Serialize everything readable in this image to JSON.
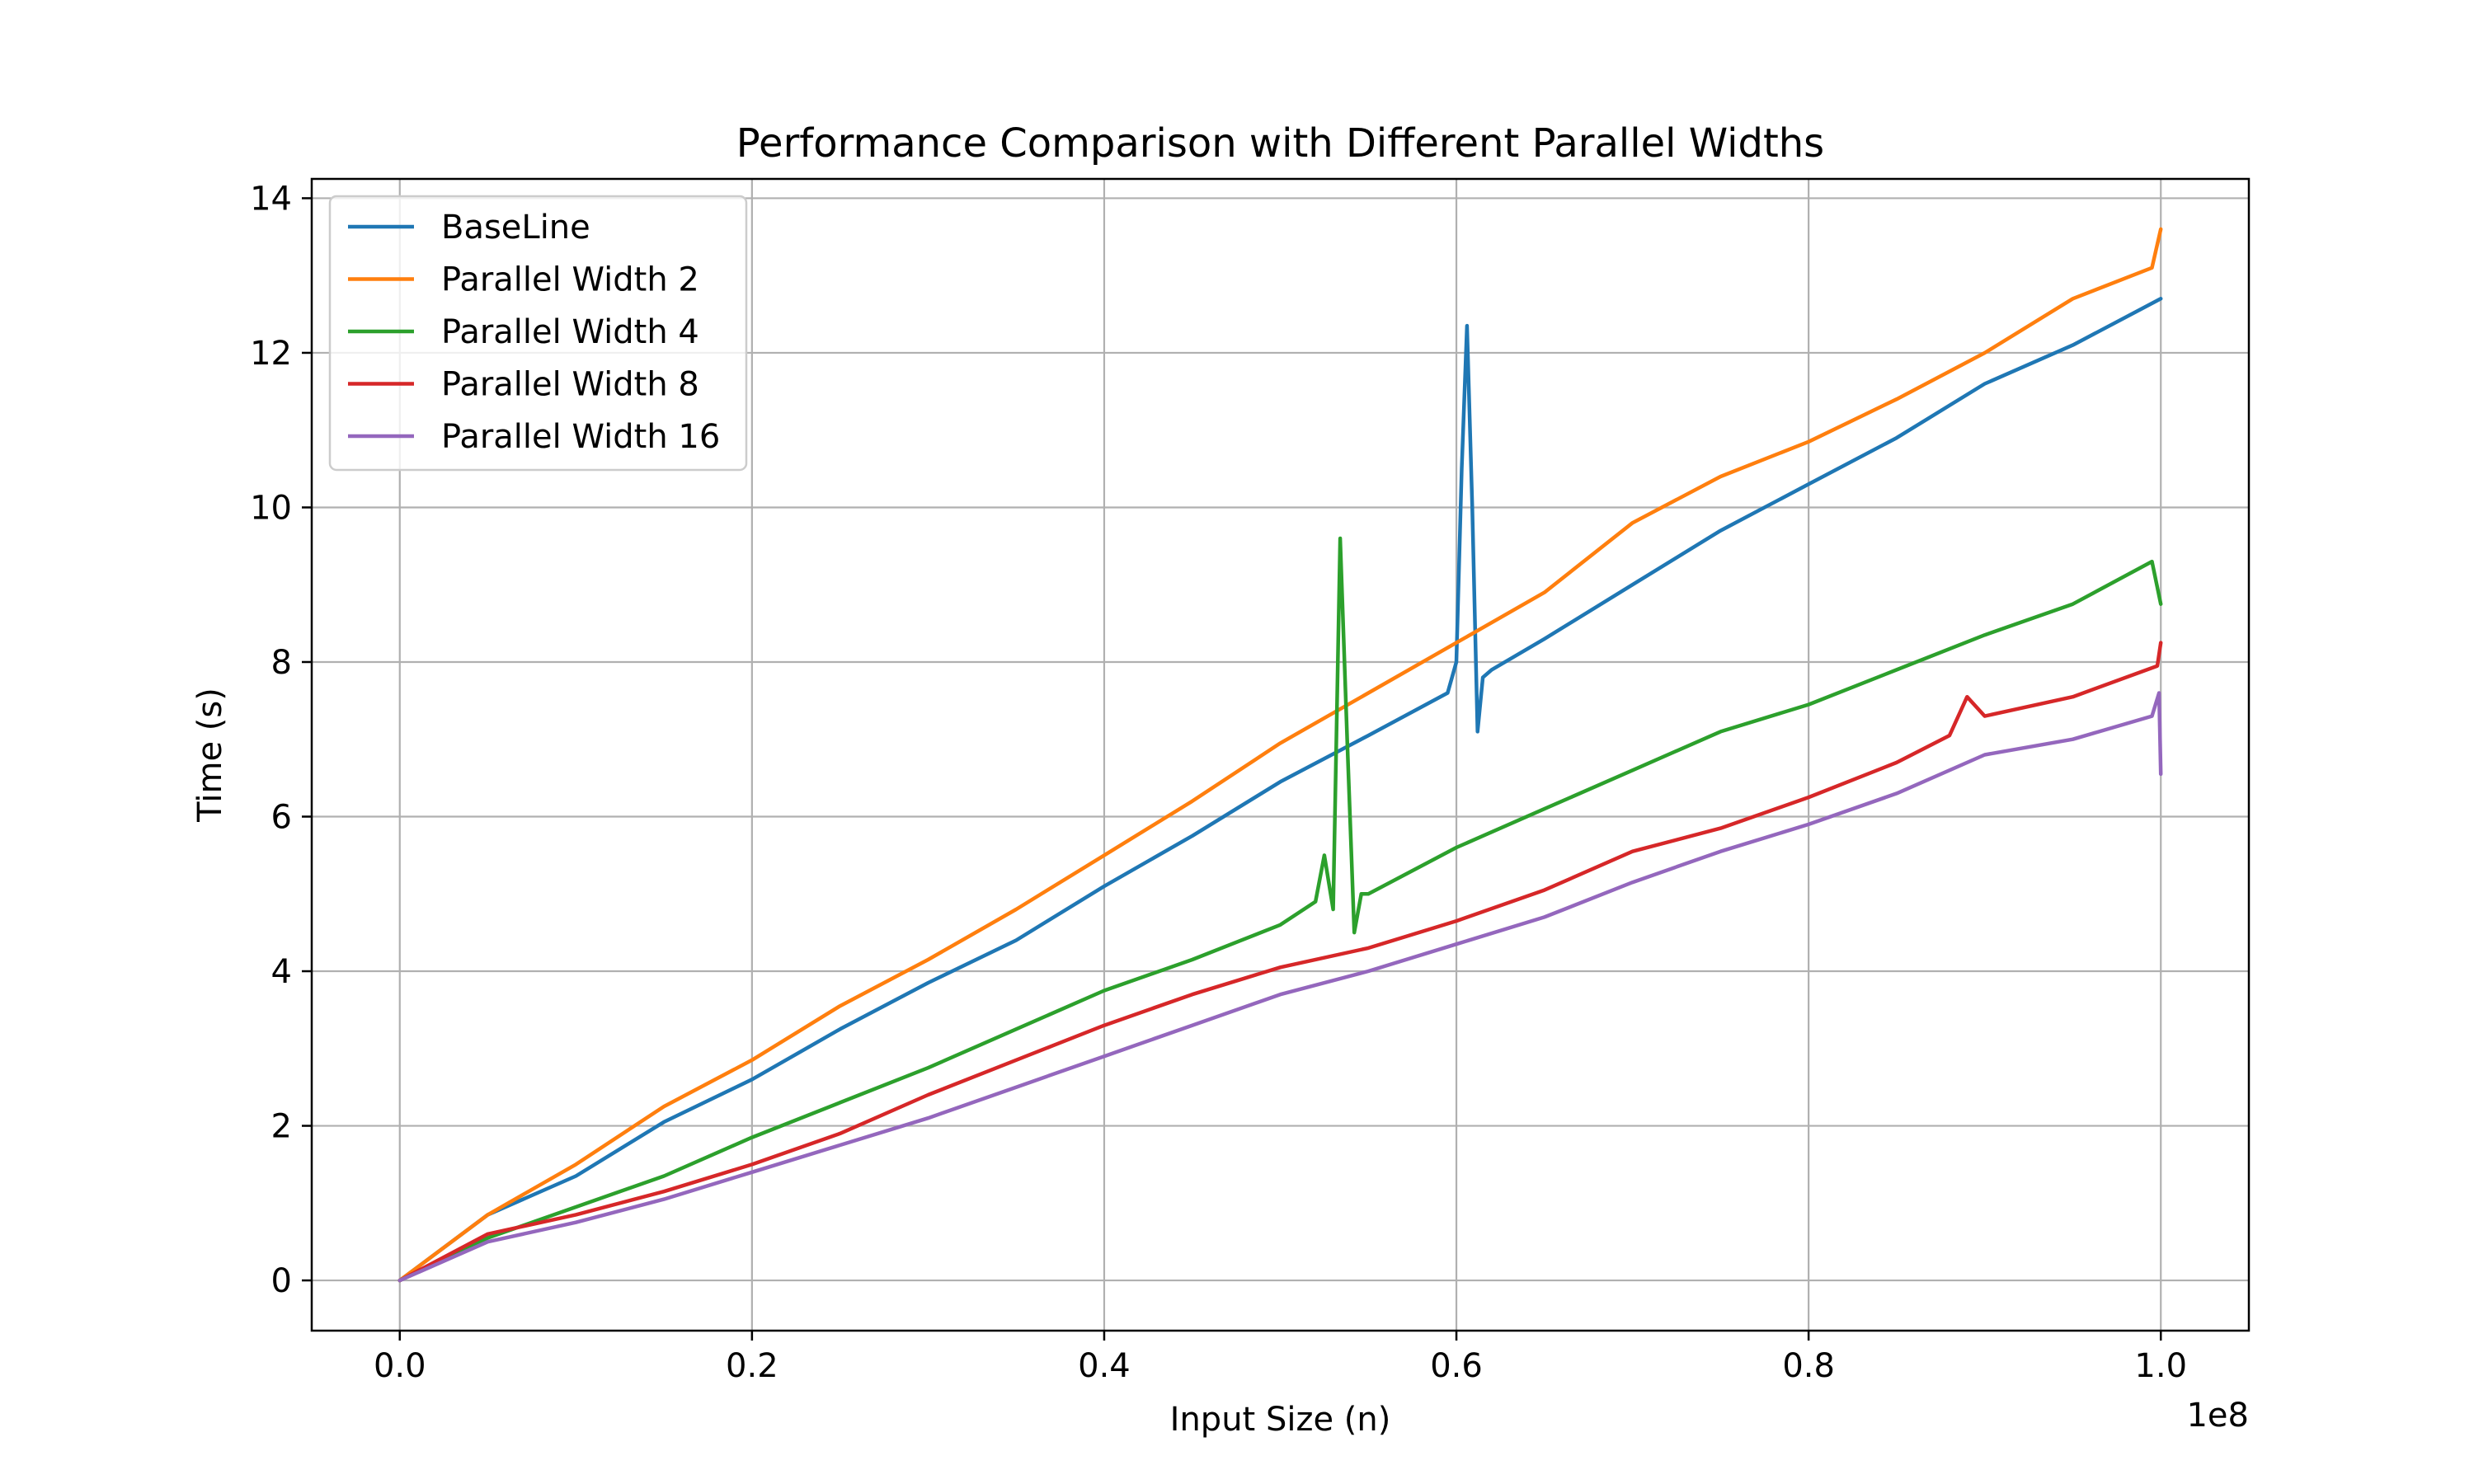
{
  "chart_data": {
    "type": "line",
    "title": "Performance Comparison with Different Parallel Widths",
    "xlabel": "Input Size (n)",
    "ylabel": "Time (s)",
    "x_offset_label": "1e8",
    "xlim": [
      -0.05,
      1.05
    ],
    "ylim": [
      -0.65,
      14.25
    ],
    "xticks": [
      0.0,
      0.2,
      0.4,
      0.6,
      0.8,
      1.0
    ],
    "xtick_labels": [
      "0.0",
      "0.2",
      "0.4",
      "0.6",
      "0.8",
      "1.0"
    ],
    "yticks": [
      0,
      2,
      4,
      6,
      8,
      10,
      12,
      14
    ],
    "ytick_labels": [
      "0",
      "2",
      "4",
      "6",
      "8",
      "10",
      "12",
      "14"
    ],
    "grid": true,
    "legend_position": "upper-left",
    "series": [
      {
        "name": "BaseLine",
        "color": "#1f77b4",
        "x": [
          0.0,
          0.05,
          0.1,
          0.15,
          0.2,
          0.25,
          0.3,
          0.35,
          0.4,
          0.45,
          0.5,
          0.55,
          0.595,
          0.6,
          0.603,
          0.606,
          0.609,
          0.612,
          0.615,
          0.62,
          0.65,
          0.7,
          0.75,
          0.8,
          0.85,
          0.9,
          0.95,
          1.0
        ],
        "y": [
          0.0,
          0.85,
          1.35,
          2.05,
          2.6,
          3.25,
          3.85,
          4.4,
          5.1,
          5.75,
          6.45,
          7.05,
          7.6,
          8.0,
          10.5,
          12.35,
          10.0,
          7.1,
          7.8,
          7.9,
          8.3,
          9.0,
          9.7,
          10.3,
          10.9,
          11.6,
          12.1,
          12.7
        ]
      },
      {
        "name": "Parallel Width 2",
        "color": "#ff7f0e",
        "x": [
          0.0,
          0.05,
          0.1,
          0.15,
          0.2,
          0.25,
          0.3,
          0.35,
          0.4,
          0.45,
          0.5,
          0.55,
          0.6,
          0.65,
          0.7,
          0.75,
          0.8,
          0.85,
          0.9,
          0.95,
          0.995,
          1.0
        ],
        "y": [
          0.0,
          0.85,
          1.5,
          2.25,
          2.85,
          3.55,
          4.15,
          4.8,
          5.5,
          6.2,
          6.95,
          7.6,
          8.25,
          8.9,
          9.8,
          10.4,
          10.85,
          11.4,
          12.0,
          12.7,
          13.1,
          13.6
        ]
      },
      {
        "name": "Parallel Width 4",
        "color": "#2ca02c",
        "x": [
          0.0,
          0.05,
          0.1,
          0.15,
          0.2,
          0.25,
          0.3,
          0.35,
          0.4,
          0.45,
          0.5,
          0.52,
          0.525,
          0.53,
          0.534,
          0.538,
          0.542,
          0.546,
          0.55,
          0.6,
          0.65,
          0.7,
          0.75,
          0.8,
          0.85,
          0.9,
          0.95,
          0.995,
          1.0
        ],
        "y": [
          0.0,
          0.55,
          0.95,
          1.35,
          1.85,
          2.3,
          2.75,
          3.25,
          3.75,
          4.15,
          4.6,
          4.9,
          5.5,
          4.8,
          9.6,
          7.0,
          4.5,
          5.0,
          5.0,
          5.6,
          6.1,
          6.6,
          7.1,
          7.45,
          7.9,
          8.35,
          8.75,
          9.3,
          8.75
        ]
      },
      {
        "name": "Parallel Width 8",
        "color": "#d62728",
        "x": [
          0.0,
          0.05,
          0.1,
          0.15,
          0.2,
          0.25,
          0.3,
          0.35,
          0.4,
          0.45,
          0.5,
          0.55,
          0.6,
          0.65,
          0.7,
          0.75,
          0.8,
          0.85,
          0.88,
          0.89,
          0.9,
          0.95,
          0.998,
          1.0
        ],
        "y": [
          0.0,
          0.6,
          0.85,
          1.15,
          1.5,
          1.9,
          2.4,
          2.85,
          3.3,
          3.7,
          4.05,
          4.3,
          4.65,
          5.05,
          5.55,
          5.85,
          6.25,
          6.7,
          7.05,
          7.55,
          7.3,
          7.55,
          7.95,
          8.25
        ]
      },
      {
        "name": "Parallel Width 16",
        "color": "#9467bd",
        "x": [
          0.0,
          0.05,
          0.1,
          0.15,
          0.2,
          0.25,
          0.3,
          0.35,
          0.4,
          0.45,
          0.5,
          0.55,
          0.6,
          0.65,
          0.7,
          0.75,
          0.8,
          0.85,
          0.9,
          0.95,
          0.995,
          0.999,
          1.0
        ],
        "y": [
          0.0,
          0.5,
          0.75,
          1.05,
          1.4,
          1.75,
          2.1,
          2.5,
          2.9,
          3.3,
          3.7,
          4.0,
          4.35,
          4.7,
          5.15,
          5.55,
          5.9,
          6.3,
          6.8,
          7.0,
          7.3,
          7.6,
          6.55
        ]
      }
    ]
  }
}
